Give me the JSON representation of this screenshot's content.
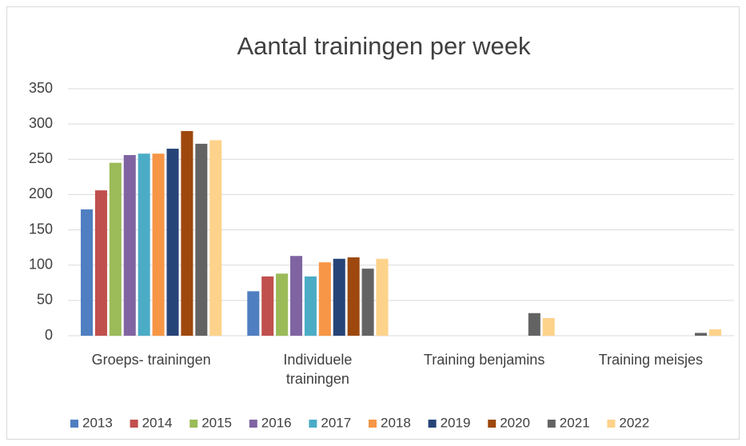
{
  "chart_data": {
    "type": "bar",
    "title": "Aantal trainingen per week",
    "categories": [
      "Groeps-  trainingen",
      "Individuele trainingen",
      "Training benjamins",
      "Training meisjes"
    ],
    "series": [
      {
        "name": "2013",
        "color": "#4f7fc1",
        "values": [
          179,
          63,
          null,
          null
        ]
      },
      {
        "name": "2014",
        "color": "#c0504d",
        "values": [
          206,
          84,
          null,
          null
        ]
      },
      {
        "name": "2015",
        "color": "#9bbb59",
        "values": [
          245,
          88,
          null,
          null
        ]
      },
      {
        "name": "2016",
        "color": "#8064a2",
        "values": [
          256,
          113,
          null,
          null
        ]
      },
      {
        "name": "2017",
        "color": "#4bacc6",
        "values": [
          258,
          84,
          null,
          null
        ]
      },
      {
        "name": "2018",
        "color": "#f79646",
        "values": [
          258,
          104,
          null,
          null
        ]
      },
      {
        "name": "2019",
        "color": "#264478",
        "values": [
          265,
          109,
          null,
          null
        ]
      },
      {
        "name": "2020",
        "color": "#9e480e",
        "values": [
          290,
          111,
          null,
          null
        ]
      },
      {
        "name": "2021",
        "color": "#636363",
        "values": [
          272,
          95,
          32,
          4
        ]
      },
      {
        "name": "2022",
        "color": "#fdd28a",
        "values": [
          277,
          109,
          25,
          9
        ]
      }
    ],
    "ylim": [
      0,
      350
    ],
    "yticks": [
      0,
      50,
      100,
      150,
      200,
      250,
      300,
      350
    ],
    "grid": true,
    "legend": "bottom"
  }
}
